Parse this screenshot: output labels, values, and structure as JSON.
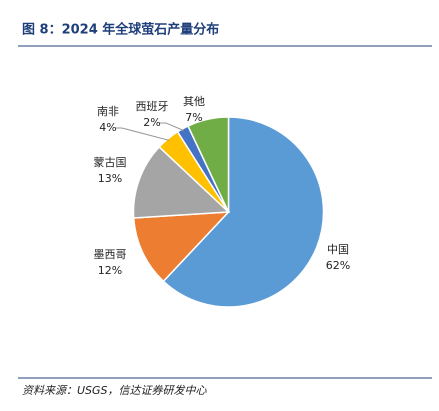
{
  "chart_data": {
    "type": "pie",
    "title": "图 8：2024 年全球萤石产量分布",
    "source": "资料来源：USGS，信达证券研发中心",
    "categories": [
      "中国",
      "墨西哥",
      "蒙古国",
      "南非",
      "西班牙",
      "其他"
    ],
    "values": [
      62,
      12,
      13,
      4,
      2,
      7
    ],
    "value_labels": [
      "62%",
      "12%",
      "13%",
      "4%",
      "2%",
      "7%"
    ],
    "colors": [
      "#5b9bd5",
      "#ed7d31",
      "#a5a5a5",
      "#ffc000",
      "#4472c4",
      "#70ad47"
    ]
  }
}
